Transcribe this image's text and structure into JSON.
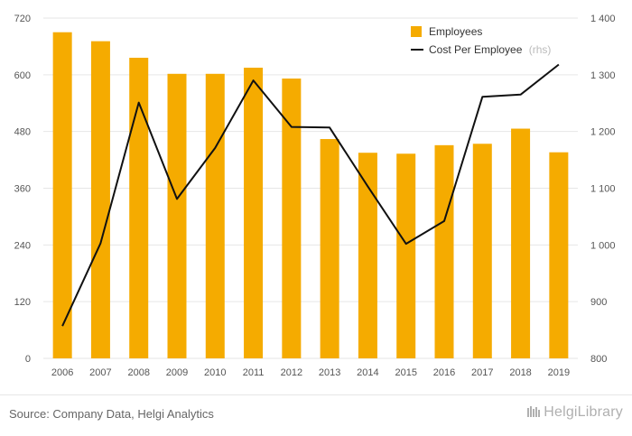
{
  "chart_data": {
    "type": "bar+line",
    "categories": [
      "2006",
      "2007",
      "2008",
      "2009",
      "2010",
      "2011",
      "2012",
      "2013",
      "2014",
      "2015",
      "2016",
      "2017",
      "2018",
      "2019"
    ],
    "series": [
      {
        "name": "Employees",
        "type": "bar",
        "axis": "left",
        "color": "#f5ab00",
        "values": [
          690,
          671,
          636,
          602,
          602,
          615,
          592,
          464,
          435,
          433,
          451,
          454,
          486,
          436
        ]
      },
      {
        "name": "Cost Per Employee",
        "type": "line",
        "axis": "right",
        "color": "#111111",
        "values": [
          857,
          1003,
          1251,
          1081,
          1171,
          1290,
          1208,
          1207,
          1103,
          1002,
          1042,
          1261,
          1265,
          1318
        ]
      }
    ],
    "y_left": {
      "lim": [
        0,
        720
      ],
      "ticks": [
        "0",
        "120",
        "240",
        "360",
        "480",
        "600",
        "720"
      ]
    },
    "y_right": {
      "lim": [
        800,
        1400
      ],
      "ticks": [
        "800",
        "900",
        "1 000",
        "1 100",
        "1 200",
        "1 300",
        "1 400"
      ]
    },
    "legend": {
      "position": "top-right",
      "items": [
        {
          "label": "Employees",
          "note": ""
        },
        {
          "label": "Cost Per Employee",
          "note": "(rhs)"
        }
      ]
    },
    "grid": true
  },
  "footer": {
    "source": "Source: Company Data, Helgi Analytics",
    "brand": "HelgiLibrary"
  },
  "colors": {
    "bar": "#f5ab00",
    "line": "#111111",
    "grid": "#e6e6e6"
  }
}
